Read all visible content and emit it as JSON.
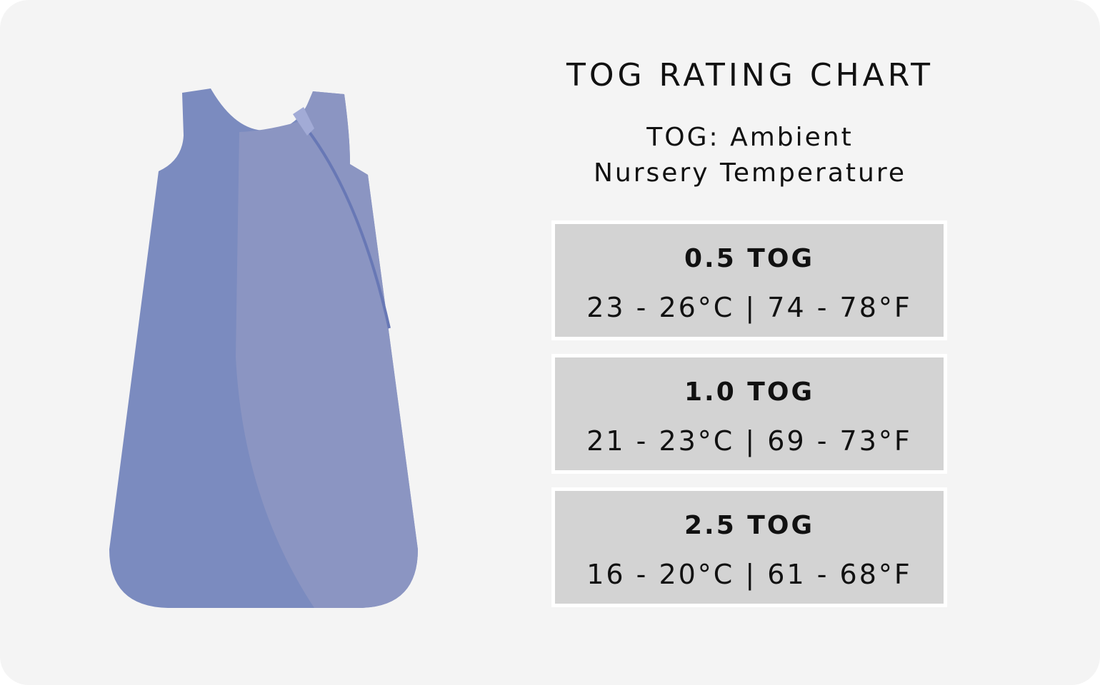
{
  "header": {
    "title": "TOG RATING CHART",
    "subtitle_lines": [
      "TOG: Ambient",
      "Nursery Temperature"
    ]
  },
  "rows": [
    {
      "tog": "0.5 TOG",
      "range": "23 - 26°C | 74 - 78°F"
    },
    {
      "tog": "1.0 TOG",
      "range": "21 - 23°C | 69 - 73°F"
    },
    {
      "tog": "2.5 TOG",
      "range": "16 - 20°C | 61 - 68°F"
    }
  ]
}
